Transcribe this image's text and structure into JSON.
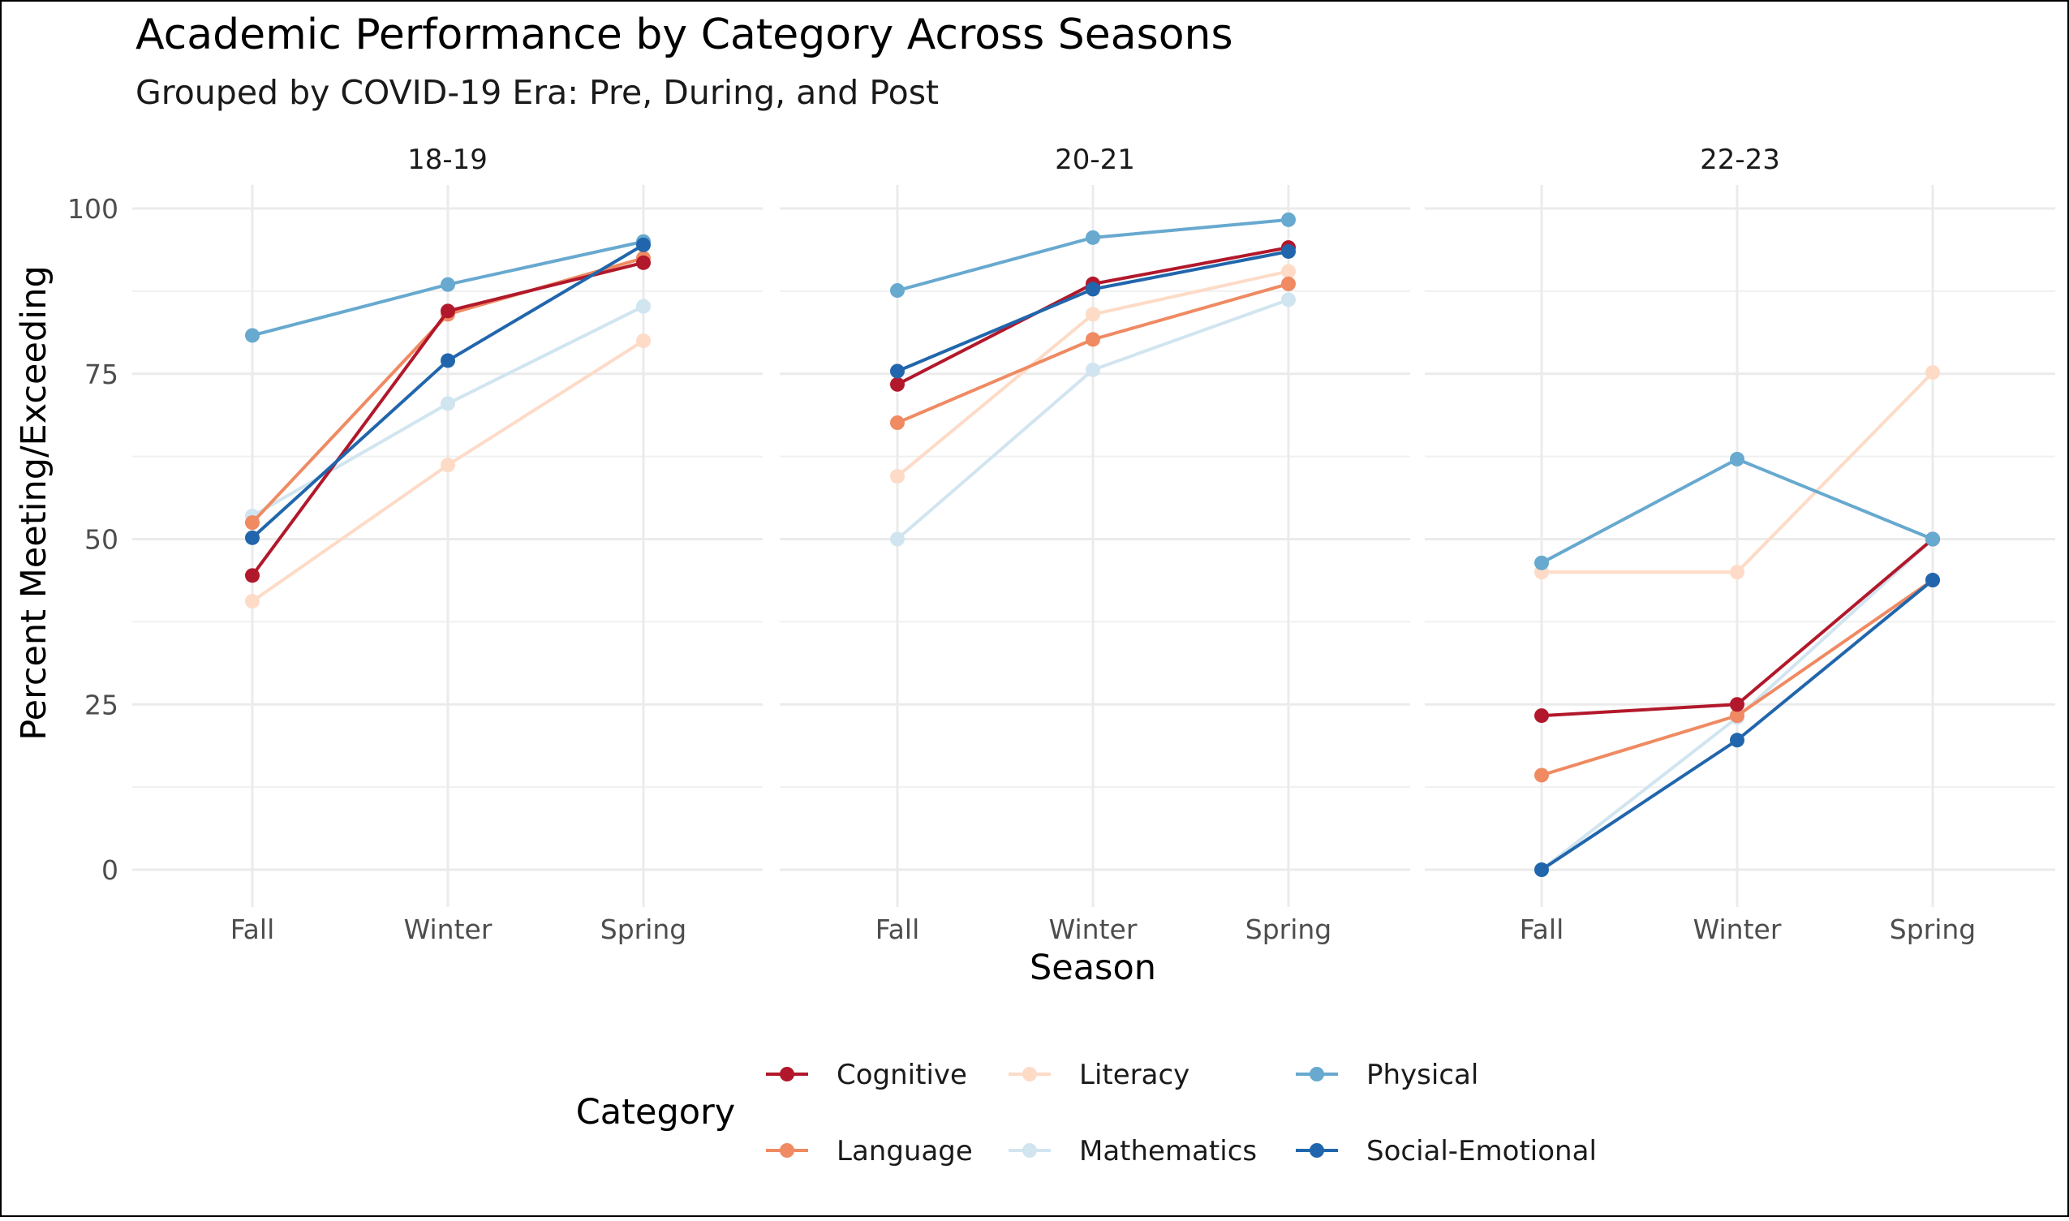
{
  "chart_data": {
    "type": "line",
    "title": "Academic Performance by Category Across Seasons",
    "subtitle": "Grouped by COVID-19 Era: Pre, During, and Post",
    "xlabel": "Season",
    "ylabel": "Percent Meeting/Exceeding",
    "ylim": [
      0,
      100
    ],
    "yticks": [
      "0",
      "25",
      "50",
      "75",
      "100"
    ],
    "categories": [
      "Fall",
      "Winter",
      "Spring"
    ],
    "grid": true,
    "legend": {
      "title": "Category",
      "position": "bottom"
    },
    "colors": {
      "Cognitive": "#B2182B",
      "Language": "#EF8A62",
      "Literacy": "#FDDBC7",
      "Mathematics": "#D1E5F0",
      "Physical": "#67A9CF",
      "Social-Emotional": "#2166AC"
    },
    "panels": [
      {
        "label": "18-19",
        "series": [
          {
            "name": "Cognitive",
            "values": [
              44.5,
              84.5,
              91.8
            ]
          },
          {
            "name": "Language",
            "values": [
              52.5,
              84.0,
              92.5
            ]
          },
          {
            "name": "Literacy",
            "values": [
              40.6,
              61.2,
              80.0
            ]
          },
          {
            "name": "Mathematics",
            "values": [
              53.5,
              70.5,
              85.2
            ]
          },
          {
            "name": "Physical",
            "values": [
              80.8,
              88.5,
              95.0
            ]
          },
          {
            "name": "Social-Emotional",
            "values": [
              50.2,
              77.0,
              94.5
            ]
          }
        ]
      },
      {
        "label": "20-21",
        "series": [
          {
            "name": "Cognitive",
            "values": [
              73.4,
              88.6,
              94.1
            ]
          },
          {
            "name": "Language",
            "values": [
              67.6,
              80.2,
              88.6
            ]
          },
          {
            "name": "Literacy",
            "values": [
              59.5,
              84.0,
              90.5
            ]
          },
          {
            "name": "Mathematics",
            "values": [
              50.0,
              75.6,
              86.2
            ]
          },
          {
            "name": "Physical",
            "values": [
              87.6,
              95.6,
              98.3
            ]
          },
          {
            "name": "Social-Emotional",
            "values": [
              75.4,
              87.8,
              93.5
            ]
          }
        ]
      },
      {
        "label": "22-23",
        "series": [
          {
            "name": "Cognitive",
            "values": [
              23.3,
              25.0,
              50.0
            ]
          },
          {
            "name": "Language",
            "values": [
              14.3,
              23.3,
              43.8
            ]
          },
          {
            "name": "Literacy",
            "values": [
              45.0,
              45.0,
              75.2
            ]
          },
          {
            "name": "Mathematics",
            "values": [
              0.0,
              23.0,
              50.0
            ]
          },
          {
            "name": "Physical",
            "values": [
              46.4,
              62.1,
              50.0
            ]
          },
          {
            "name": "Social-Emotional",
            "values": [
              0.0,
              19.6,
              43.8
            ]
          }
        ]
      }
    ]
  }
}
